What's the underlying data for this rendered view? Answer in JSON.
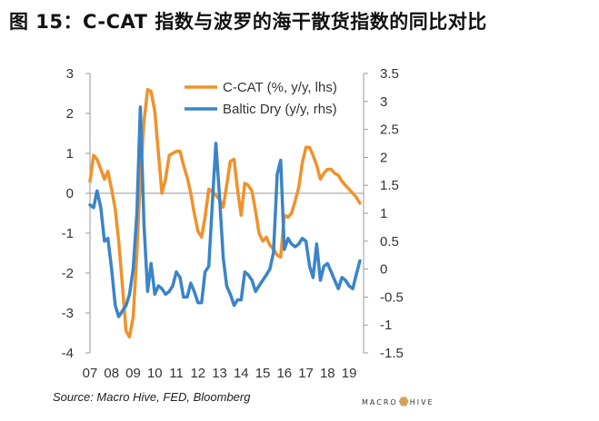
{
  "title": "图 15：C-CAT 指数与波罗的海干散货指数的同比对比",
  "source": "Source: Macro Hive, FED, Bloomberg",
  "logo": {
    "left": "MACRO",
    "right": "HIVE"
  },
  "colors": {
    "ccat": "#f0922b",
    "baltic": "#3a84c9",
    "axis": "#999999",
    "text": "#333333"
  },
  "chart_data": {
    "type": "line",
    "legend_position": "top-right",
    "grid": false,
    "x": {
      "range": [
        2007,
        2019.67
      ],
      "tick_values": [
        2007,
        2008,
        2009,
        2010,
        2011,
        2012,
        2013,
        2014,
        2015,
        2016,
        2017,
        2018,
        2019
      ],
      "tick_labels": [
        "07",
        "08",
        "09",
        "10",
        "11",
        "12",
        "13",
        "14",
        "15",
        "16",
        "17",
        "18",
        "19"
      ]
    },
    "y_left": {
      "range": [
        -4,
        3
      ],
      "ticks": [
        -4,
        -3,
        -2,
        -1,
        0,
        1,
        2,
        3
      ],
      "tick_labels": [
        "-4",
        "-3",
        "-2",
        "-1",
        "0",
        "1",
        "2",
        "3"
      ]
    },
    "y_right": {
      "range": [
        -1.5,
        3.5
      ],
      "ticks": [
        -1.5,
        -1,
        -0.5,
        0,
        0.5,
        1,
        1.5,
        2,
        2.5,
        3,
        3.5
      ],
      "tick_labels": [
        "-1.5",
        "-1",
        "-0.5",
        "0",
        "0.5",
        "1",
        "1.5",
        "2",
        "2.5",
        "3",
        "3.5"
      ]
    },
    "series": [
      {
        "name": "C-CAT (%, y/y, lhs)",
        "axis": "left",
        "color": "#f0922b",
        "points": [
          [
            2007.0,
            0.3
          ],
          [
            2007.17,
            0.95
          ],
          [
            2007.33,
            0.85
          ],
          [
            2007.5,
            0.6
          ],
          [
            2007.67,
            0.35
          ],
          [
            2007.83,
            0.55
          ],
          [
            2008.0,
            0.1
          ],
          [
            2008.17,
            -0.4
          ],
          [
            2008.33,
            -1.2
          ],
          [
            2008.5,
            -2.3
          ],
          [
            2008.67,
            -3.45
          ],
          [
            2008.83,
            -3.6
          ],
          [
            2009.0,
            -3.1
          ],
          [
            2009.17,
            -1.5
          ],
          [
            2009.33,
            0.4
          ],
          [
            2009.5,
            1.8
          ],
          [
            2009.67,
            2.6
          ],
          [
            2009.83,
            2.55
          ],
          [
            2010.0,
            2.05
          ],
          [
            2010.17,
            1.0
          ],
          [
            2010.33,
            0.0
          ],
          [
            2010.5,
            0.35
          ],
          [
            2010.67,
            0.95
          ],
          [
            2010.83,
            1.0
          ],
          [
            2011.0,
            1.05
          ],
          [
            2011.17,
            1.05
          ],
          [
            2011.33,
            0.7
          ],
          [
            2011.5,
            0.4
          ],
          [
            2011.67,
            0.0
          ],
          [
            2011.83,
            -0.5
          ],
          [
            2012.0,
            -0.95
          ],
          [
            2012.17,
            -1.1
          ],
          [
            2012.33,
            -0.6
          ],
          [
            2012.5,
            0.1
          ],
          [
            2012.67,
            0.05
          ],
          [
            2012.83,
            -0.05
          ],
          [
            2013.0,
            -0.15
          ],
          [
            2013.17,
            -0.35
          ],
          [
            2013.33,
            0.2
          ],
          [
            2013.5,
            0.8
          ],
          [
            2013.67,
            0.85
          ],
          [
            2013.83,
            0.1
          ],
          [
            2014.0,
            -0.55
          ],
          [
            2014.17,
            0.25
          ],
          [
            2014.33,
            0.2
          ],
          [
            2014.5,
            0.05
          ],
          [
            2014.67,
            -0.45
          ],
          [
            2014.83,
            -1.0
          ],
          [
            2015.0,
            -1.2
          ],
          [
            2015.17,
            -1.1
          ],
          [
            2015.33,
            -1.3
          ],
          [
            2015.5,
            -1.4
          ],
          [
            2015.67,
            -1.55
          ],
          [
            2015.83,
            -1.6
          ],
          [
            2016.0,
            -0.55
          ],
          [
            2016.17,
            -0.6
          ],
          [
            2016.33,
            -0.5
          ],
          [
            2016.5,
            -0.2
          ],
          [
            2016.67,
            0.15
          ],
          [
            2016.83,
            0.75
          ],
          [
            2017.0,
            1.15
          ],
          [
            2017.17,
            1.15
          ],
          [
            2017.33,
            0.95
          ],
          [
            2017.5,
            0.7
          ],
          [
            2017.67,
            0.35
          ],
          [
            2017.83,
            0.5
          ],
          [
            2018.0,
            0.6
          ],
          [
            2018.17,
            0.6
          ],
          [
            2018.33,
            0.5
          ],
          [
            2018.5,
            0.45
          ],
          [
            2018.67,
            0.3
          ],
          [
            2018.83,
            0.2
          ],
          [
            2019.0,
            0.1
          ],
          [
            2019.17,
            0.0
          ],
          [
            2019.33,
            -0.1
          ],
          [
            2019.5,
            -0.25
          ]
        ]
      },
      {
        "name": "Baltic Dry (y/y, rhs)",
        "axis": "right",
        "color": "#3a84c9",
        "points": [
          [
            2007.0,
            1.15
          ],
          [
            2007.17,
            1.1
          ],
          [
            2007.33,
            1.4
          ],
          [
            2007.5,
            1.1
          ],
          [
            2007.67,
            0.5
          ],
          [
            2007.83,
            0.55
          ],
          [
            2008.0,
            0.0
          ],
          [
            2008.17,
            -0.65
          ],
          [
            2008.33,
            -0.85
          ],
          [
            2008.5,
            -0.75
          ],
          [
            2008.67,
            -0.65
          ],
          [
            2008.83,
            -0.45
          ],
          [
            2009.0,
            0.0
          ],
          [
            2009.17,
            1.0
          ],
          [
            2009.33,
            2.9
          ],
          [
            2009.5,
            0.8
          ],
          [
            2009.67,
            -0.4
          ],
          [
            2009.83,
            0.1
          ],
          [
            2010.0,
            -0.45
          ],
          [
            2010.17,
            -0.3
          ],
          [
            2010.33,
            -0.35
          ],
          [
            2010.5,
            -0.45
          ],
          [
            2010.67,
            -0.4
          ],
          [
            2010.83,
            -0.3
          ],
          [
            2011.0,
            -0.05
          ],
          [
            2011.17,
            -0.15
          ],
          [
            2011.33,
            -0.5
          ],
          [
            2011.5,
            -0.5
          ],
          [
            2011.67,
            -0.25
          ],
          [
            2011.83,
            -0.4
          ],
          [
            2012.0,
            -0.6
          ],
          [
            2012.17,
            -0.6
          ],
          [
            2012.33,
            -0.05
          ],
          [
            2012.5,
            0.05
          ],
          [
            2012.67,
            1.2
          ],
          [
            2012.83,
            2.25
          ],
          [
            2013.0,
            1.3
          ],
          [
            2013.17,
            0.2
          ],
          [
            2013.33,
            -0.3
          ],
          [
            2013.5,
            -0.45
          ],
          [
            2013.67,
            -0.65
          ],
          [
            2013.83,
            -0.55
          ],
          [
            2014.0,
            -0.55
          ],
          [
            2014.17,
            -0.05
          ],
          [
            2014.33,
            -0.1
          ],
          [
            2014.5,
            -0.2
          ],
          [
            2014.67,
            -0.4
          ],
          [
            2014.83,
            -0.3
          ],
          [
            2015.0,
            -0.2
          ],
          [
            2015.17,
            -0.1
          ],
          [
            2015.33,
            0.0
          ],
          [
            2015.5,
            0.3
          ],
          [
            2015.67,
            1.7
          ],
          [
            2015.83,
            1.95
          ],
          [
            2016.0,
            0.35
          ],
          [
            2016.17,
            0.55
          ],
          [
            2016.33,
            0.45
          ],
          [
            2016.5,
            0.4
          ],
          [
            2016.67,
            0.45
          ],
          [
            2016.83,
            0.55
          ],
          [
            2017.0,
            0.5
          ],
          [
            2017.17,
            0.05
          ],
          [
            2017.33,
            -0.15
          ],
          [
            2017.5,
            0.45
          ],
          [
            2017.67,
            -0.2
          ],
          [
            2017.83,
            0.05
          ],
          [
            2018.0,
            0.1
          ],
          [
            2018.17,
            -0.05
          ],
          [
            2018.33,
            -0.2
          ],
          [
            2018.5,
            -0.35
          ],
          [
            2018.67,
            -0.15
          ],
          [
            2018.83,
            -0.2
          ],
          [
            2019.0,
            -0.3
          ],
          [
            2019.17,
            -0.35
          ],
          [
            2019.33,
            -0.1
          ],
          [
            2019.5,
            0.15
          ]
        ]
      }
    ]
  }
}
